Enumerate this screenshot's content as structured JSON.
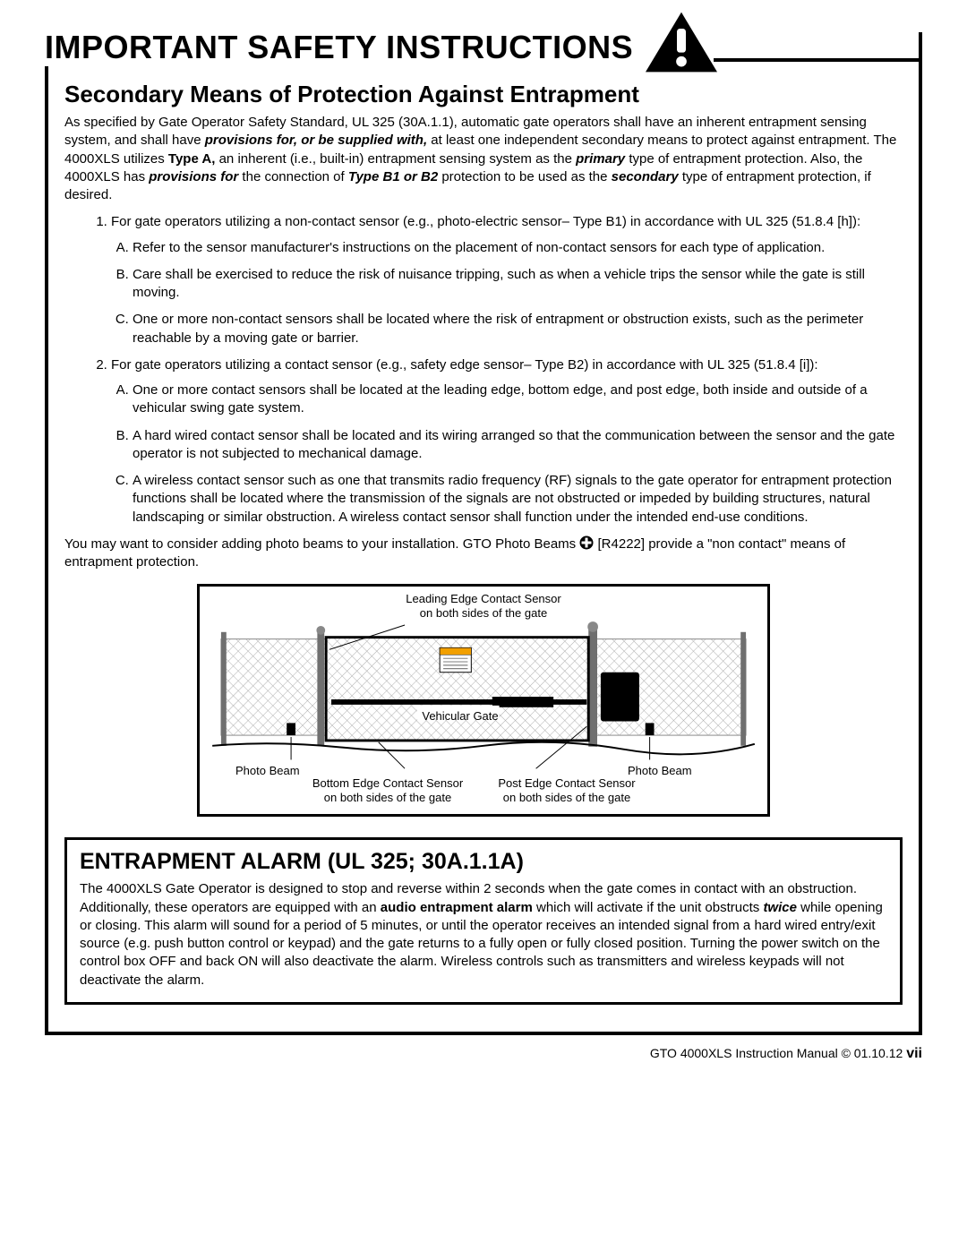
{
  "header": {
    "title": "IMPORTANT SAFETY INSTRUCTIONS",
    "icon_name": "warning-triangle",
    "icon_fill": "#000000",
    "icon_mark": "#ffffff"
  },
  "section": {
    "subtitle": "Secondary Means of Protection Against Entrapment",
    "intro_parts": {
      "p1": "As specified by Gate Operator Safety Standard, UL 325 (30A.1.1), automatic gate operators shall have an inherent entrapment sensing system, and shall have ",
      "p2_bi": "provisions for, or be supplied with,",
      "p3": " at least one independent secondary means to protect against entrapment. The 4000XLS utilizes ",
      "p4_b": "Type A,",
      "p5": " an inherent (i.e., built-in) entrapment sensing system as the ",
      "p6_bi": "primary",
      "p7": " type of entrapment protection. Also, the 4000XLS has ",
      "p8_bi": "provisions for",
      "p9": " the connection of ",
      "p10_bi": "Type B1 or B2",
      "p11": " protection to be used as the ",
      "p12_bi": "secondary",
      "p13": " type of entrapment protection, if desired."
    },
    "list": [
      {
        "lead": "For gate operators utilizing a non-contact sensor (e.g., photo-electric sensor– Type B1) in accordance with UL 325 (51.8.4 [h]):",
        "subs": [
          "Refer to the sensor manufacturer's instructions on the placement of non-contact sensors for each type of application.",
          "Care shall be exercised to reduce the risk of nuisance tripping, such as when a vehicle trips the sensor while the gate is still moving.",
          "One or more non-contact sensors shall be located where the risk of entrapment or obstruction exists, such as the perimeter reachable by a moving gate or barrier."
        ]
      },
      {
        "lead": "For gate operators utilizing a contact sensor (e.g., safety edge sensor– Type B2) in accordance with UL 325 (51.8.4 [i]):",
        "subs": [
          "One or more contact sensors shall be located at the leading edge, bottom edge, and post edge, both inside and outside of a vehicular swing gate system.",
          "A hard wired contact sensor shall be located and its wiring arranged so that the communication between the sensor and the gate operator is not subjected to mechanical damage.",
          "A wireless contact sensor such as one that transmits radio frequency (RF) signals to the gate operator for entrapment protection functions shall be located where the transmission of the signals are not obstructed or impeded by building structures, natural landscaping or similar obstruction.  A wireless contact sensor shall function under the intended end-use conditions."
        ]
      }
    ],
    "note_parts": {
      "n1": "You may want to consider adding photo beams to your installation. GTO Photo Beams ",
      "n2": "[R4222] provide a \"non contact\" means of entrapment protection."
    }
  },
  "diagram": {
    "border_color": "#000000",
    "bg_color": "#ffffff",
    "mesh_color": "#adadad",
    "rail_color": "#6f6f6f",
    "labels": {
      "leading_top": "Leading Edge Contact Sensor\non both sides of the gate",
      "vehicular": "Vehicular Gate",
      "photo_left": "Photo Beam",
      "photo_right": "Photo Beam",
      "bottom_edge": "Bottom Edge Contact Sensor\non both sides of the gate",
      "post_edge": "Post Edge Contact Sensor\non both sides of the gate"
    }
  },
  "alarm": {
    "title": "ENTRAPMENT ALARM (UL 325; 30A.1.1A)",
    "text_parts": {
      "a1": "The 4000XLS Gate Operator is designed to stop and reverse within 2 seconds when the gate comes in contact with an obstruction. Additionally, these operators are equipped with an ",
      "a2_b": "audio entrapment alarm",
      "a3": " which will activate if the unit obstructs ",
      "a4_bi": "twice",
      "a5": " while opening or closing. This alarm will sound for a period of 5 minutes, or until the operator receives an intended signal from a hard wired entry/exit source (e.g. push button control or keypad) and the gate returns to a fully open or fully closed position. Turning the power switch on the control box OFF and back ON will also deactivate the alarm. Wireless controls such as transmitters and wireless keypads will not deactivate the alarm."
    }
  },
  "footer": {
    "text": "GTO 4000XLS Instruction Manual © 01.10.12",
    "page": "vii"
  }
}
